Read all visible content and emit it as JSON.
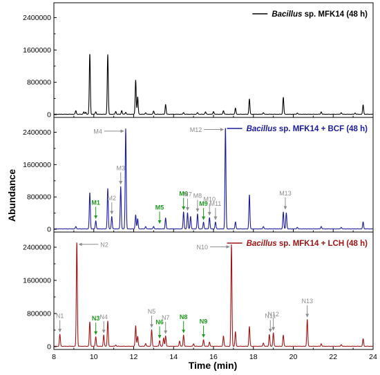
{
  "chart_data": {
    "type": "line",
    "xlabel": "Time (min)",
    "ylabel": "Abundance",
    "xlim": [
      8,
      24
    ],
    "x_ticks": [
      "8",
      "10",
      "12",
      "14",
      "16",
      "18",
      "20",
      "22",
      "24"
    ],
    "y_tick_labels": [
      "0",
      "800000",
      "1600000",
      "2400000"
    ],
    "colors": {
      "control": "#000000",
      "bcf": "#1a1aa0",
      "lch": "#a01414",
      "highlight": "#1a9a1a",
      "marker": "#8c8c8c"
    },
    "panels": [
      {
        "id": "control",
        "legend_prefix": "Bacillus",
        "legend_suffix": " sp. MFK14 (48 h)",
        "ylim": [
          0,
          2700000
        ],
        "baseline": 10000,
        "peaks": [
          {
            "x": 9.1,
            "y": 90000
          },
          {
            "x": 9.5,
            "y": 60000
          },
          {
            "x": 9.6,
            "y": 50000
          },
          {
            "x": 9.8,
            "y": 1500000
          },
          {
            "x": 10.1,
            "y": 60000
          },
          {
            "x": 10.7,
            "y": 1480000
          },
          {
            "x": 11.1,
            "y": 70000
          },
          {
            "x": 11.4,
            "y": 90000
          },
          {
            "x": 11.6,
            "y": 50000
          },
          {
            "x": 12.1,
            "y": 850000
          },
          {
            "x": 12.2,
            "y": 430000
          },
          {
            "x": 12.6,
            "y": 40000
          },
          {
            "x": 13.0,
            "y": 80000
          },
          {
            "x": 13.6,
            "y": 240000
          },
          {
            "x": 14.5,
            "y": 40000
          },
          {
            "x": 15.2,
            "y": 40000
          },
          {
            "x": 15.6,
            "y": 60000
          },
          {
            "x": 16.0,
            "y": 70000
          },
          {
            "x": 16.5,
            "y": 90000
          },
          {
            "x": 17.1,
            "y": 150000
          },
          {
            "x": 17.8,
            "y": 380000
          },
          {
            "x": 18.5,
            "y": 40000
          },
          {
            "x": 19.5,
            "y": 420000
          },
          {
            "x": 20.2,
            "y": 30000
          },
          {
            "x": 21.4,
            "y": 60000
          },
          {
            "x": 22.4,
            "y": 40000
          },
          {
            "x": 23.1,
            "y": 30000
          },
          {
            "x": 23.5,
            "y": 230000
          }
        ],
        "annotations": []
      },
      {
        "id": "bcf",
        "legend_prefix": "Bacillus",
        "legend_suffix": " sp. MFK14 + BCF (48 h)",
        "ylim": [
          0,
          2700000
        ],
        "baseline": 10000,
        "peaks": [
          {
            "x": 9.1,
            "y": 60000
          },
          {
            "x": 9.8,
            "y": 900000
          },
          {
            "x": 10.1,
            "y": 200000
          },
          {
            "x": 10.7,
            "y": 1000000
          },
          {
            "x": 10.9,
            "y": 310000
          },
          {
            "x": 11.35,
            "y": 1050000
          },
          {
            "x": 11.6,
            "y": 2480000
          },
          {
            "x": 12.1,
            "y": 350000
          },
          {
            "x": 12.2,
            "y": 250000
          },
          {
            "x": 12.6,
            "y": 60000
          },
          {
            "x": 13.0,
            "y": 60000
          },
          {
            "x": 13.6,
            "y": 270000
          },
          {
            "x": 14.5,
            "y": 420000
          },
          {
            "x": 14.7,
            "y": 400000
          },
          {
            "x": 14.85,
            "y": 310000
          },
          {
            "x": 15.2,
            "y": 370000
          },
          {
            "x": 15.5,
            "y": 170000
          },
          {
            "x": 15.8,
            "y": 280000
          },
          {
            "x": 16.1,
            "y": 170000
          },
          {
            "x": 16.6,
            "y": 2520000
          },
          {
            "x": 17.1,
            "y": 170000
          },
          {
            "x": 17.8,
            "y": 850000
          },
          {
            "x": 18.5,
            "y": 60000
          },
          {
            "x": 19.5,
            "y": 420000
          },
          {
            "x": 19.65,
            "y": 400000
          },
          {
            "x": 20.2,
            "y": 40000
          },
          {
            "x": 21.4,
            "y": 60000
          },
          {
            "x": 22.4,
            "y": 40000
          },
          {
            "x": 23.5,
            "y": 170000
          }
        ],
        "annotations": [
          {
            "label": "M4",
            "x": 11.6,
            "y": 2480000,
            "dir": "left",
            "highlight": false
          },
          {
            "label": "M12",
            "x": 16.6,
            "y": 2520000,
            "dir": "left",
            "highlight": false
          },
          {
            "label": "M3",
            "x": 11.35,
            "y": 1050000,
            "dir": "down",
            "highlight": false
          },
          {
            "label": "M2",
            "x": 10.9,
            "y": 310000,
            "dir": "down",
            "highlight": false
          },
          {
            "label": "M1",
            "x": 10.1,
            "y": 200000,
            "dir": "down",
            "highlight": true
          },
          {
            "label": "M5",
            "x": 13.3,
            "y": 80000,
            "dir": "down",
            "highlight": true
          },
          {
            "label": "M6",
            "x": 14.5,
            "y": 420000,
            "dir": "down",
            "highlight": true
          },
          {
            "label": "M7",
            "x": 14.7,
            "y": 400000,
            "dir": "down",
            "highlight": false
          },
          {
            "label": "M8",
            "x": 15.2,
            "y": 370000,
            "dir": "down",
            "highlight": false
          },
          {
            "label": "M9",
            "x": 15.5,
            "y": 170000,
            "dir": "down",
            "highlight": true
          },
          {
            "label": "M10",
            "x": 15.8,
            "y": 280000,
            "dir": "down",
            "highlight": false
          },
          {
            "label": "M11",
            "x": 16.1,
            "y": 170000,
            "dir": "down",
            "highlight": false
          },
          {
            "label": "M13",
            "x": 19.6,
            "y": 430000,
            "dir": "down",
            "highlight": false
          }
        ]
      },
      {
        "id": "lch",
        "legend_prefix": "Bacillus",
        "legend_suffix": " sp. MFK14 + LCH (48 h)",
        "ylim": [
          0,
          2700000
        ],
        "baseline": 10000,
        "peaks": [
          {
            "x": 8.3,
            "y": 290000
          },
          {
            "x": 9.15,
            "y": 2520000
          },
          {
            "x": 9.8,
            "y": 590000
          },
          {
            "x": 10.1,
            "y": 230000
          },
          {
            "x": 10.5,
            "y": 270000
          },
          {
            "x": 10.7,
            "y": 610000
          },
          {
            "x": 11.1,
            "y": 30000
          },
          {
            "x": 12.1,
            "y": 500000
          },
          {
            "x": 12.2,
            "y": 240000
          },
          {
            "x": 12.6,
            "y": 70000
          },
          {
            "x": 12.9,
            "y": 400000
          },
          {
            "x": 13.3,
            "y": 140000
          },
          {
            "x": 13.5,
            "y": 200000
          },
          {
            "x": 13.6,
            "y": 250000
          },
          {
            "x": 14.3,
            "y": 130000
          },
          {
            "x": 14.5,
            "y": 270000
          },
          {
            "x": 15.0,
            "y": 60000
          },
          {
            "x": 15.5,
            "y": 160000
          },
          {
            "x": 15.8,
            "y": 100000
          },
          {
            "x": 16.5,
            "y": 250000
          },
          {
            "x": 16.9,
            "y": 2460000
          },
          {
            "x": 17.1,
            "y": 350000
          },
          {
            "x": 17.8,
            "y": 480000
          },
          {
            "x": 18.5,
            "y": 80000
          },
          {
            "x": 18.8,
            "y": 280000
          },
          {
            "x": 19.0,
            "y": 330000
          },
          {
            "x": 19.5,
            "y": 270000
          },
          {
            "x": 20.7,
            "y": 650000
          },
          {
            "x": 21.4,
            "y": 60000
          },
          {
            "x": 22.4,
            "y": 40000
          },
          {
            "x": 23.5,
            "y": 180000
          }
        ],
        "annotations": [
          {
            "label": "N2",
            "x": 9.15,
            "y": 2520000,
            "dir": "right",
            "highlight": false
          },
          {
            "label": "N10",
            "x": 16.9,
            "y": 2460000,
            "dir": "left",
            "highlight": false
          },
          {
            "label": "N1",
            "x": 8.3,
            "y": 290000,
            "dir": "down",
            "highlight": false
          },
          {
            "label": "N3",
            "x": 10.1,
            "y": 230000,
            "dir": "down",
            "highlight": true
          },
          {
            "label": "N4",
            "x": 10.5,
            "y": 270000,
            "dir": "down",
            "highlight": false
          },
          {
            "label": "N5",
            "x": 12.9,
            "y": 400000,
            "dir": "down",
            "highlight": false
          },
          {
            "label": "N6",
            "x": 13.3,
            "y": 140000,
            "dir": "down",
            "highlight": true
          },
          {
            "label": "N7",
            "x": 13.6,
            "y": 250000,
            "dir": "down",
            "highlight": false
          },
          {
            "label": "N8",
            "x": 14.5,
            "y": 270000,
            "dir": "down",
            "highlight": true
          },
          {
            "label": "N9",
            "x": 15.5,
            "y": 160000,
            "dir": "down",
            "highlight": true
          },
          {
            "label": "N11",
            "x": 18.85,
            "y": 290000,
            "dir": "down",
            "highlight": false
          },
          {
            "label": "N12",
            "x": 19.0,
            "y": 330000,
            "dir": "down",
            "highlight": false
          },
          {
            "label": "N13",
            "x": 20.7,
            "y": 650000,
            "dir": "down",
            "highlight": false
          }
        ]
      }
    ]
  }
}
